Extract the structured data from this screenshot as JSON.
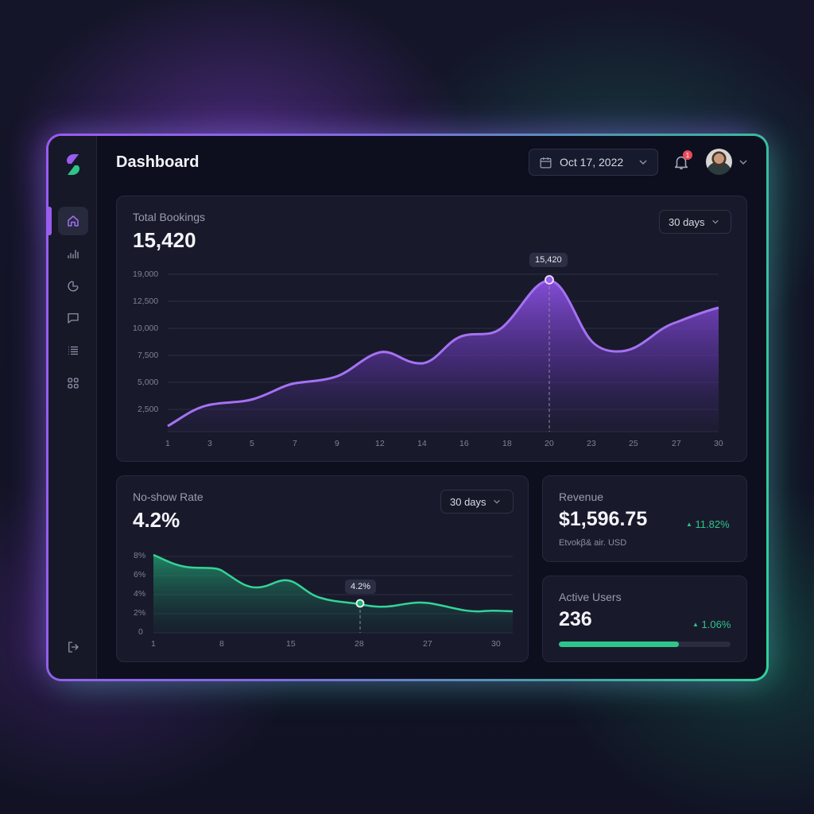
{
  "header": {
    "title": "Dashboard",
    "date": "Oct 17, 2022",
    "notification_count": "1"
  },
  "sidebar": {
    "items": [
      {
        "name": "home",
        "active": true
      },
      {
        "name": "analytics",
        "active": false
      },
      {
        "name": "reports",
        "active": false
      },
      {
        "name": "messages",
        "active": false
      },
      {
        "name": "list",
        "active": false
      },
      {
        "name": "apps",
        "active": false
      }
    ],
    "logout": "logout"
  },
  "total_bookings": {
    "label": "Total Bookings",
    "value": "15,420",
    "range": "30 days",
    "tooltip": "15,420",
    "y_ticks": [
      "19,000",
      "12,500",
      "10,000",
      "7,500",
      "5,000",
      "2,500"
    ],
    "x_ticks": [
      "1",
      "3",
      "5",
      "7",
      "9",
      "12",
      "14",
      "16",
      "18",
      "20",
      "23",
      "25",
      "27",
      "30"
    ]
  },
  "no_show": {
    "label": "No-show Rate",
    "value": "4.2%",
    "range": "30 days",
    "tooltip": "4.2%",
    "y_ticks": [
      "8%",
      "6%",
      "4%",
      "2%",
      "0"
    ],
    "x_ticks": [
      "1",
      "8",
      "15",
      "28",
      "27",
      "30"
    ]
  },
  "revenue": {
    "label": "Revenue",
    "value": "$1,596.75",
    "delta": "11.82%",
    "sub": "Etvokβ& air. USD"
  },
  "active_users": {
    "label": "Active Users",
    "value": "236",
    "delta": "1.06%",
    "progress_pct": 70
  },
  "colors": {
    "purple": "#9b5cf0",
    "green": "#2fc48a",
    "badge": "#e84a5a",
    "card": "#181a2b",
    "window": "#0d0f1f"
  },
  "chart_data": [
    {
      "type": "area",
      "title": "Total Bookings",
      "x": [
        1,
        3,
        5,
        7,
        9,
        12,
        14,
        16,
        18,
        20,
        23,
        25,
        27,
        30
      ],
      "values": [
        800,
        2900,
        3500,
        4800,
        5400,
        7900,
        6700,
        9300,
        10200,
        15420,
        8600,
        8400,
        10600,
        12000
      ],
      "y_tick_labels": [
        "2,500",
        "5,000",
        "7,500",
        "10,000",
        "12,500",
        "19,000"
      ],
      "highlight": {
        "x": 20,
        "value": 15420,
        "label": "15,420"
      },
      "grid": true,
      "color": "#9b5cf0"
    },
    {
      "type": "area",
      "title": "No-show Rate",
      "x_tick_labels": [
        "1",
        "8",
        "15",
        "28",
        "27",
        "30"
      ],
      "values_pct": [
        8.1,
        7.0,
        6.8,
        4.9,
        5.5,
        3.8,
        3.2,
        2.9,
        3.3,
        3.0,
        2.2
      ],
      "y_tick_labels": [
        "0",
        "2%",
        "4%",
        "6%",
        "8%"
      ],
      "ylim": [
        0,
        8
      ],
      "highlight": {
        "x_label": "28",
        "value": 4.2,
        "label": "4.2%"
      },
      "grid": true,
      "color": "#2fc48a"
    }
  ]
}
